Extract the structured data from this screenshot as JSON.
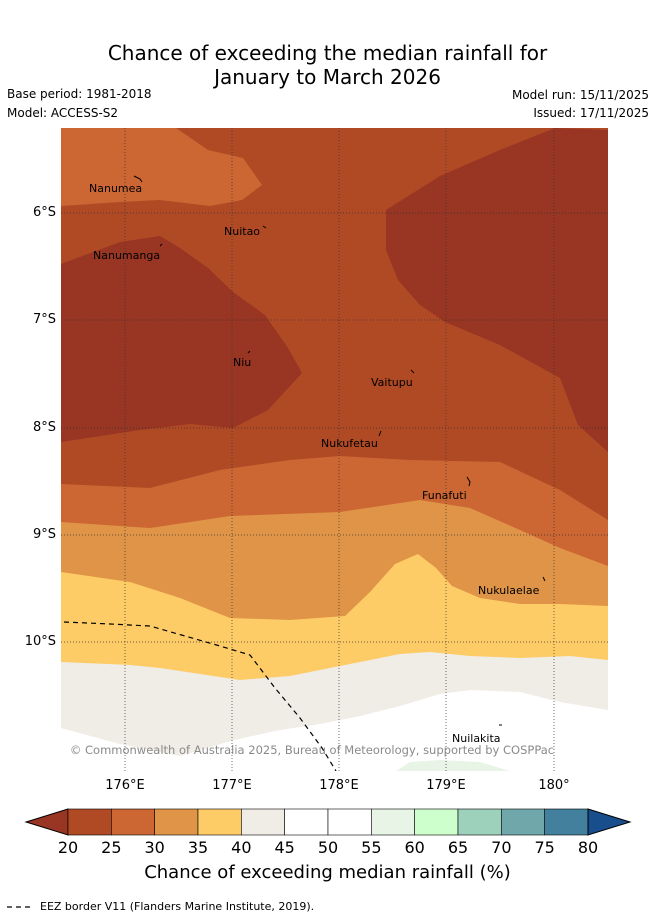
{
  "title_line1": "Chance of exceeding the median rainfall for",
  "title_line2": "January to March 2026",
  "base_period": "Base period: 1981-2018",
  "model": "Model: ACCESS-S2",
  "model_run": "Model run: 15/11/2025",
  "issued": "Issued: 17/11/2025",
  "lat_labels": [
    "6°S",
    "7°S",
    "8°S",
    "9°S",
    "10°S"
  ],
  "lon_labels": [
    "176°E",
    "177°E",
    "178°E",
    "179°E",
    "180°"
  ],
  "islands": [
    {
      "name": "Nanumea"
    },
    {
      "name": "Nuitao"
    },
    {
      "name": "Nanumanga"
    },
    {
      "name": "Niu"
    },
    {
      "name": "Vaitupu"
    },
    {
      "name": "Nukufetau"
    },
    {
      "name": "Funafuti"
    },
    {
      "name": "Nukulaelae"
    },
    {
      "name": "Nuilakita"
    }
  ],
  "copyright": "© Commonwealth of Australia 2025, Bureau of Meteorology, supported by COSPPac",
  "colorbar": {
    "ticks": [
      "20",
      "25",
      "30",
      "35",
      "40",
      "45",
      "50",
      "55",
      "60",
      "65",
      "70",
      "75",
      "80"
    ],
    "colors": [
      "#b04a25",
      "#cc6633",
      "#df9447",
      "#fecc66",
      "#f0ece6",
      "#ffffff",
      "#ffffff",
      "#e8f4e6",
      "#ccffcc",
      "#9ed1bb",
      "#6fa7aa",
      "#43809e"
    ],
    "under_color": "#983523",
    "over_color": "#174e8b",
    "label": "Chance of exceeding median rainfall (%)"
  },
  "legend_eez": "EEZ border V11 (Flanders Marine Institute, 2019)."
}
